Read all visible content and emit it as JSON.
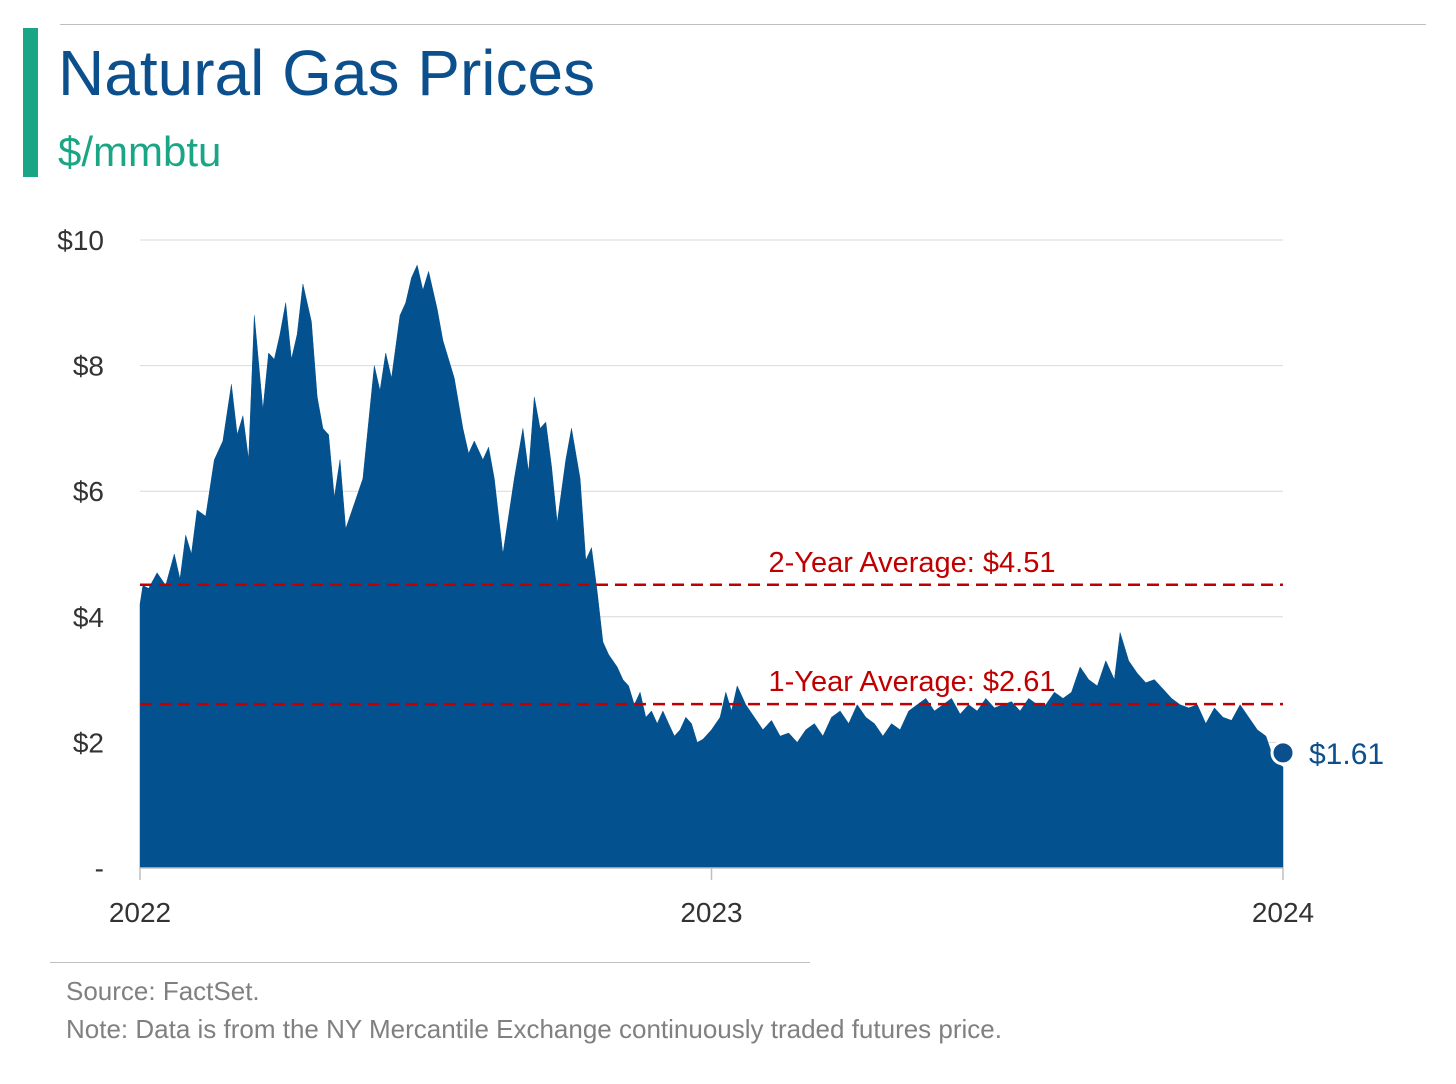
{
  "header": {
    "title": "Natural Gas Prices",
    "subtitle": "$/mmbtu",
    "title_color": "#0b4f8c",
    "accent_color": "#1aa584"
  },
  "footer": {
    "source": "Source: FactSet.",
    "note": "Note: Data is from the NY Mercantile Exchange continuously traded futures price."
  },
  "chart_data": {
    "type": "area",
    "title": "Natural Gas Prices",
    "subtitle": "$/mmbtu",
    "ylim": [
      0,
      10
    ],
    "y_ticks": [
      {
        "value": 0,
        "label": "-"
      },
      {
        "value": 2,
        "label": "$2"
      },
      {
        "value": 4,
        "label": "$4"
      },
      {
        "value": 6,
        "label": "$6"
      },
      {
        "value": 8,
        "label": "$8"
      },
      {
        "value": 10,
        "label": "$10"
      }
    ],
    "x_ticks": [
      {
        "value": 2022.0,
        "label": "2022"
      },
      {
        "value": 2023.0,
        "label": "2023"
      },
      {
        "value": 2024.0,
        "label": "2024"
      }
    ],
    "xlim": [
      2022.0,
      2024.0
    ],
    "grid": true,
    "fill_color": "#03528f",
    "series": [
      {
        "x": [
          2022.0,
          2022.005,
          2022.015,
          2022.03,
          2022.045,
          2022.06,
          2022.07,
          2022.08,
          2022.09,
          2022.1,
          2022.115,
          2022.13,
          2022.145,
          2022.16,
          2022.17,
          2022.18,
          2022.19,
          2022.2,
          2022.215,
          2022.225,
          2022.235,
          2022.245,
          2022.255,
          2022.265,
          2022.275,
          2022.285,
          2022.3,
          2022.31,
          2022.32,
          2022.33,
          2022.34,
          2022.35,
          2022.36,
          2022.375,
          2022.39,
          2022.4,
          2022.41,
          2022.42,
          2022.43,
          2022.44,
          2022.455,
          2022.465,
          2022.475,
          2022.485,
          2022.495,
          2022.505,
          2022.52,
          2022.53,
          2022.54,
          2022.55,
          2022.565,
          2022.575,
          2022.585,
          2022.6,
          2022.61,
          2022.62,
          2022.635,
          2022.645,
          2022.655,
          2022.67,
          2022.68,
          2022.69,
          2022.7,
          2022.71,
          2022.72,
          2022.73,
          2022.745,
          2022.755,
          2022.77,
          2022.78,
          2022.79,
          2022.8,
          2022.81,
          2022.82,
          2022.835,
          2022.845,
          2022.855,
          2022.865,
          2022.875,
          2022.885,
          2022.895,
          2022.905,
          2022.915,
          2022.925,
          2022.935,
          2022.945,
          2022.955,
          2022.965,
          2022.975,
          2022.985,
          2023.0,
          2023.015,
          2023.025,
          2023.035,
          2023.045,
          2023.06,
          2023.075,
          2023.09,
          2023.105,
          2023.12,
          2023.135,
          2023.15,
          2023.165,
          2023.18,
          2023.195,
          2023.21,
          2023.225,
          2023.24,
          2023.255,
          2023.27,
          2023.285,
          2023.3,
          2023.315,
          2023.33,
          2023.345,
          2023.36,
          2023.375,
          2023.39,
          2023.405,
          2023.42,
          2023.435,
          2023.45,
          2023.465,
          2023.48,
          2023.495,
          2023.51,
          2023.525,
          2023.54,
          2023.555,
          2023.57,
          2023.585,
          2023.6,
          2023.615,
          2023.63,
          2023.645,
          2023.66,
          2023.675,
          2023.69,
          2023.705,
          2023.715,
          2023.73,
          2023.745,
          2023.76,
          2023.775,
          2023.79,
          2023.805,
          2023.82,
          2023.835,
          2023.85,
          2023.865,
          2023.88,
          2023.895,
          2023.91,
          2023.925,
          2023.94,
          2023.955,
          2023.97,
          2023.985,
          2024.0
        ],
        "values": [
          4.2,
          4.5,
          4.45,
          4.7,
          4.5,
          5.0,
          4.6,
          5.3,
          5.0,
          5.7,
          5.6,
          6.5,
          6.8,
          7.7,
          6.9,
          7.2,
          6.5,
          8.8,
          7.3,
          8.2,
          8.1,
          8.5,
          9.0,
          8.1,
          8.5,
          9.3,
          8.7,
          7.5,
          7.0,
          6.9,
          5.9,
          6.5,
          5.4,
          5.8,
          6.2,
          7.1,
          8.0,
          7.6,
          8.2,
          7.8,
          8.8,
          9.0,
          9.4,
          9.6,
          9.2,
          9.5,
          8.9,
          8.4,
          8.1,
          7.8,
          7.0,
          6.6,
          6.8,
          6.5,
          6.7,
          6.2,
          5.0,
          5.6,
          6.2,
          7.0,
          6.3,
          7.5,
          7.0,
          7.1,
          6.4,
          5.5,
          6.5,
          7.0,
          6.2,
          4.9,
          5.1,
          4.4,
          3.6,
          3.4,
          3.2,
          3.0,
          2.9,
          2.6,
          2.8,
          2.4,
          2.5,
          2.3,
          2.5,
          2.3,
          2.1,
          2.2,
          2.4,
          2.3,
          2.0,
          2.05,
          2.2,
          2.4,
          2.8,
          2.5,
          2.9,
          2.6,
          2.4,
          2.2,
          2.35,
          2.1,
          2.15,
          2.0,
          2.2,
          2.3,
          2.1,
          2.4,
          2.5,
          2.3,
          2.6,
          2.4,
          2.3,
          2.1,
          2.3,
          2.2,
          2.5,
          2.6,
          2.7,
          2.5,
          2.6,
          2.7,
          2.45,
          2.6,
          2.5,
          2.7,
          2.55,
          2.6,
          2.65,
          2.5,
          2.7,
          2.6,
          2.6,
          2.8,
          2.7,
          2.8,
          3.2,
          3.0,
          2.9,
          3.3,
          3.0,
          3.75,
          3.3,
          3.1,
          2.95,
          3.0,
          2.85,
          2.7,
          2.6,
          2.55,
          2.6,
          2.3,
          2.55,
          2.4,
          2.35,
          2.6,
          2.4,
          2.2,
          2.1,
          1.7,
          1.61
        ]
      }
    ],
    "reference_lines": [
      {
        "label": "2-Year Average: $4.51",
        "value": 4.51,
        "color": "#c00000",
        "style": "dashed"
      },
      {
        "label": "1-Year Average: $2.61",
        "value": 2.61,
        "color": "#c00000",
        "style": "dashed"
      }
    ],
    "end_point": {
      "x": 2024.0,
      "value": 1.61,
      "label": "$1.61",
      "color": "#0b4f8c"
    }
  }
}
